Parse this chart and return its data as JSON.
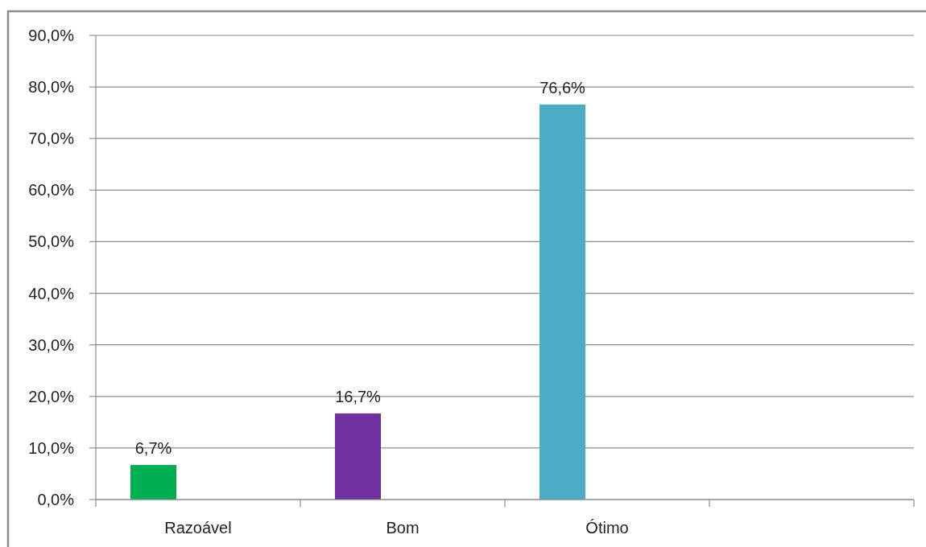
{
  "chart_data": {
    "type": "bar",
    "categories": [
      "Razoável",
      "Bom",
      "Ótimo",
      null
    ],
    "values": [
      6.7,
      16.7,
      76.6,
      null
    ],
    "colors": [
      "#00b050",
      "#7030a0",
      "#4bacc6",
      null
    ],
    "value_labels": [
      "6,7%",
      "16,7%",
      "76,6%",
      null
    ],
    "ylim": [
      0,
      90
    ],
    "yticks": [
      {
        "value": 0,
        "label": "0,0%"
      },
      {
        "value": 10,
        "label": "10,0%"
      },
      {
        "value": 20,
        "label": "20,0%"
      },
      {
        "value": 30,
        "label": "30,0%"
      },
      {
        "value": 40,
        "label": "40,0%"
      },
      {
        "value": 50,
        "label": "50,0%"
      },
      {
        "value": 60,
        "label": "60,0%"
      },
      {
        "value": 70,
        "label": "70,0%"
      },
      {
        "value": 80,
        "label": "80,0%"
      },
      {
        "value": 90,
        "label": "90,0%"
      }
    ],
    "grid": "y"
  }
}
